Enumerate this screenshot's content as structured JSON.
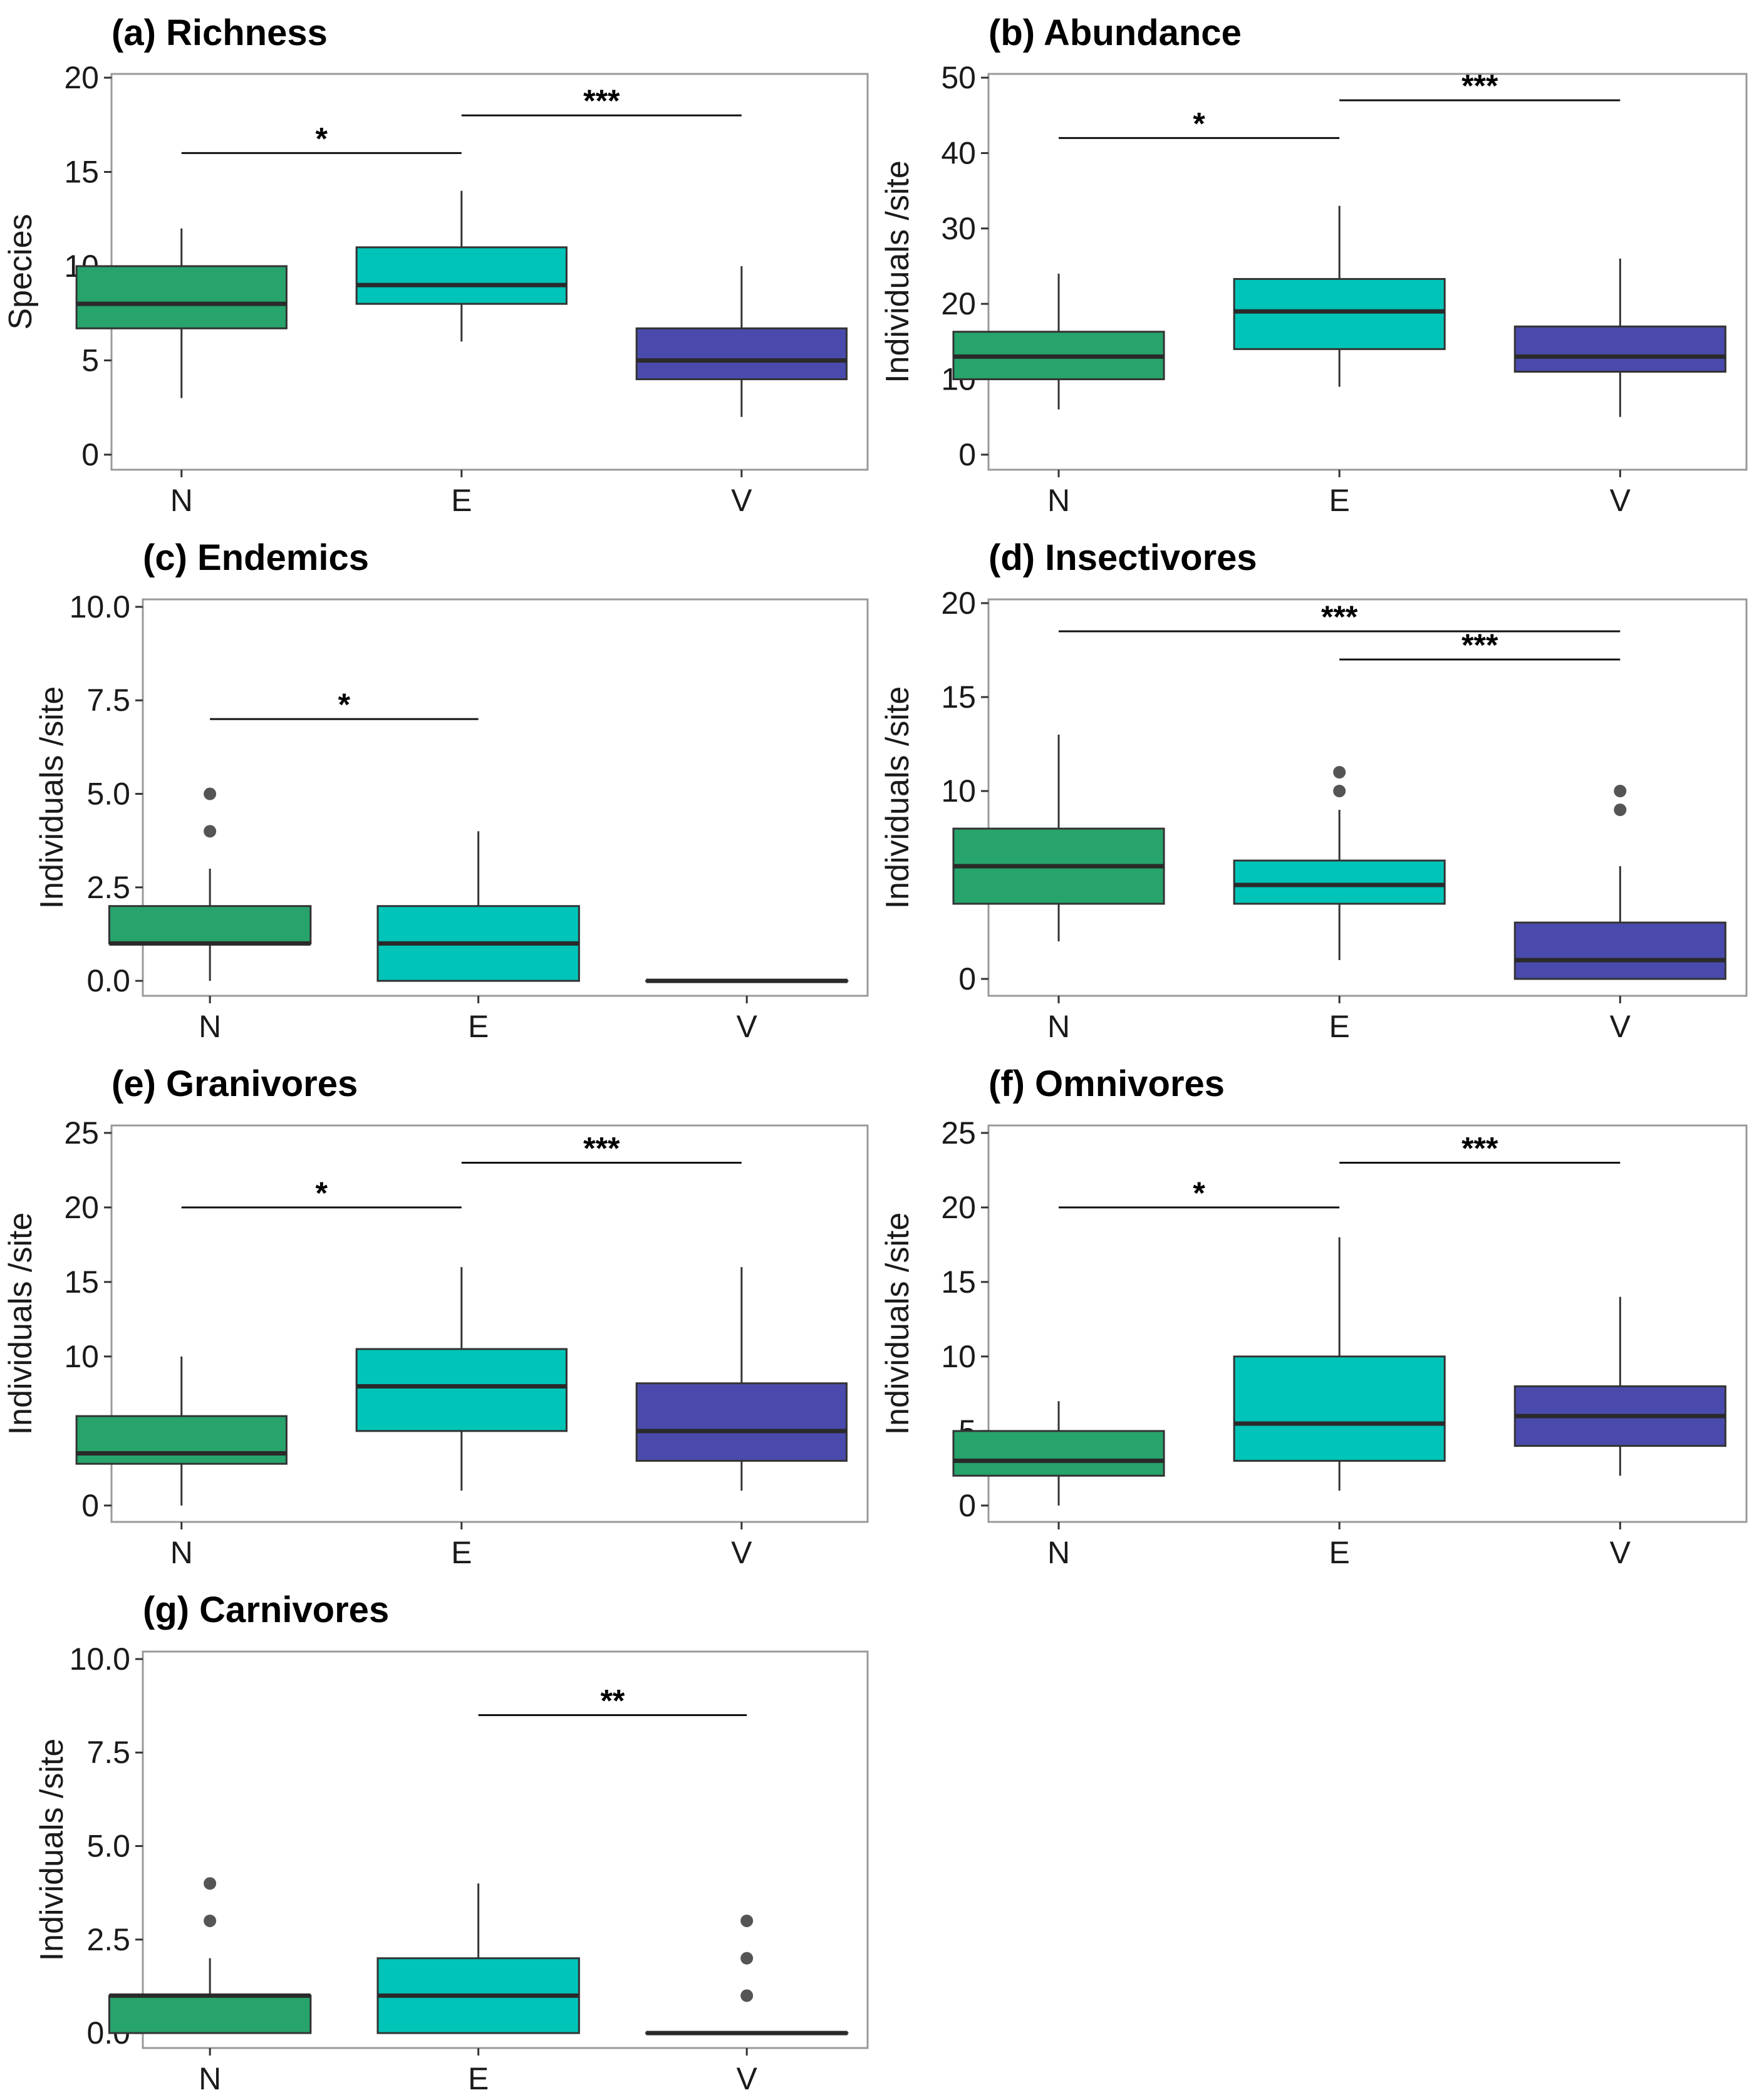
{
  "chart_data": [
    {
      "type": "box",
      "panel": "(a) Richness",
      "title": "(a) Richness",
      "ylabel": "Species",
      "ylim": [
        -0.8,
        20.2
      ],
      "ticks": [
        "0",
        "5",
        "10",
        "15",
        "20"
      ],
      "tick_values": [
        0,
        5,
        10,
        15,
        20
      ],
      "categories": [
        "N",
        "E",
        "V"
      ],
      "boxes": [
        {
          "q1": 6.7,
          "median": 8,
          "q3": 10,
          "lo": 3,
          "hi": 12,
          "outliers": []
        },
        {
          "q1": 8,
          "median": 9,
          "q3": 11,
          "lo": 6,
          "hi": 14,
          "outliers": []
        },
        {
          "q1": 4,
          "median": 5,
          "q3": 6.7,
          "lo": 2,
          "hi": 10,
          "outliers": []
        }
      ],
      "significance": [
        {
          "from": 0,
          "to": 1,
          "y": 16,
          "label": "*"
        },
        {
          "from": 1,
          "to": 2,
          "y": 18,
          "label": "***"
        }
      ]
    },
    {
      "type": "box",
      "panel": "(b) Abundance",
      "title": "(b) Abundance",
      "ylabel": "Individuals /site",
      "ylim": [
        -2,
        50.5
      ],
      "ticks": [
        "0",
        "10",
        "20",
        "30",
        "40",
        "50"
      ],
      "tick_values": [
        0,
        10,
        20,
        30,
        40,
        50
      ],
      "categories": [
        "N",
        "E",
        "V"
      ],
      "boxes": [
        {
          "q1": 10,
          "median": 13,
          "q3": 16.3,
          "lo": 6,
          "hi": 24,
          "outliers": []
        },
        {
          "q1": 14,
          "median": 19,
          "q3": 23.3,
          "lo": 9,
          "hi": 33,
          "outliers": []
        },
        {
          "q1": 11,
          "median": 13,
          "q3": 17,
          "lo": 5,
          "hi": 26,
          "outliers": []
        }
      ],
      "significance": [
        {
          "from": 0,
          "to": 1,
          "y": 42,
          "label": "*"
        },
        {
          "from": 1,
          "to": 2,
          "y": 47,
          "label": "***"
        }
      ]
    },
    {
      "type": "box",
      "panel": "(c) Endemics",
      "title": "(c) Endemics",
      "ylabel": "Individuals /site",
      "ylim": [
        -0.4,
        10.2
      ],
      "ticks": [
        "0.0",
        "2.5",
        "5.0",
        "7.5",
        "10.0"
      ],
      "tick_values": [
        0,
        2.5,
        5,
        7.5,
        10
      ],
      "categories": [
        "N",
        "E",
        "V"
      ],
      "boxes": [
        {
          "q1": 1,
          "median": 1,
          "q3": 2,
          "lo": 0,
          "hi": 3,
          "outliers": [
            4,
            5
          ]
        },
        {
          "q1": 0,
          "median": 1,
          "q3": 2,
          "lo": 0,
          "hi": 4,
          "outliers": []
        },
        {
          "q1": 0,
          "median": 0,
          "q3": 0,
          "lo": 0,
          "hi": 0,
          "outliers": []
        }
      ],
      "significance": [
        {
          "from": 0,
          "to": 1,
          "y": 7,
          "label": "*"
        }
      ]
    },
    {
      "type": "box",
      "panel": "(d) Insectivores",
      "title": "(d) Insectivores",
      "ylabel": "Individuals /site",
      "ylim": [
        -0.9,
        20.2
      ],
      "ticks": [
        "0",
        "5",
        "10",
        "15",
        "20"
      ],
      "tick_values": [
        0,
        5,
        10,
        15,
        20
      ],
      "categories": [
        "N",
        "E",
        "V"
      ],
      "boxes": [
        {
          "q1": 4,
          "median": 6,
          "q3": 8,
          "lo": 2,
          "hi": 13,
          "outliers": []
        },
        {
          "q1": 4,
          "median": 5,
          "q3": 6.3,
          "lo": 1,
          "hi": 9,
          "outliers": [
            10,
            11
          ]
        },
        {
          "q1": 0,
          "median": 1,
          "q3": 3,
          "lo": 0,
          "hi": 6,
          "outliers": [
            9,
            10
          ]
        }
      ],
      "significance": [
        {
          "from": 0,
          "to": 2,
          "y": 18.5,
          "label": "***"
        },
        {
          "from": 1,
          "to": 2,
          "y": 17,
          "label": "***"
        }
      ]
    },
    {
      "type": "box",
      "panel": "(e) Granivores",
      "title": "(e) Granivores",
      "ylabel": "Individuals /site",
      "ylim": [
        -1.1,
        25.5
      ],
      "ticks": [
        "0",
        "5",
        "10",
        "15",
        "20",
        "25"
      ],
      "tick_values": [
        0,
        5,
        10,
        15,
        20,
        25
      ],
      "categories": [
        "N",
        "E",
        "V"
      ],
      "boxes": [
        {
          "q1": 2.8,
          "median": 3.5,
          "q3": 6,
          "lo": 0,
          "hi": 10,
          "outliers": []
        },
        {
          "q1": 5,
          "median": 8,
          "q3": 10.5,
          "lo": 1,
          "hi": 16,
          "outliers": []
        },
        {
          "q1": 3,
          "median": 5,
          "q3": 8.2,
          "lo": 1,
          "hi": 16,
          "outliers": []
        }
      ],
      "significance": [
        {
          "from": 0,
          "to": 1,
          "y": 20,
          "label": "*"
        },
        {
          "from": 1,
          "to": 2,
          "y": 23,
          "label": "***"
        }
      ]
    },
    {
      "type": "box",
      "panel": "(f) Omnivores",
      "title": "(f) Omnivores",
      "ylabel": "Individuals /site",
      "ylim": [
        -1.1,
        25.5
      ],
      "ticks": [
        "0",
        "5",
        "10",
        "15",
        "20",
        "25"
      ],
      "tick_values": [
        0,
        5,
        10,
        15,
        20,
        25
      ],
      "categories": [
        "N",
        "E",
        "V"
      ],
      "boxes": [
        {
          "q1": 2,
          "median": 3,
          "q3": 5,
          "lo": 0,
          "hi": 7,
          "outliers": []
        },
        {
          "q1": 3,
          "median": 5.5,
          "q3": 10,
          "lo": 1,
          "hi": 18,
          "outliers": []
        },
        {
          "q1": 4,
          "median": 6,
          "q3": 8,
          "lo": 2,
          "hi": 14,
          "outliers": []
        }
      ],
      "significance": [
        {
          "from": 0,
          "to": 1,
          "y": 20,
          "label": "*"
        },
        {
          "from": 1,
          "to": 2,
          "y": 23,
          "label": "***"
        }
      ]
    },
    {
      "type": "box",
      "panel": "(g) Carnivores",
      "title": "(g) Carnivores",
      "ylabel": "Individuals /site",
      "ylim": [
        -0.4,
        10.2
      ],
      "ticks": [
        "0.0",
        "2.5",
        "5.0",
        "7.5",
        "10.0"
      ],
      "tick_values": [
        0,
        2.5,
        5,
        7.5,
        10
      ],
      "categories": [
        "N",
        "E",
        "V"
      ],
      "boxes": [
        {
          "q1": 0,
          "median": 1,
          "q3": 1,
          "lo": 0,
          "hi": 2,
          "outliers": [
            3,
            4
          ]
        },
        {
          "q1": 0,
          "median": 1,
          "q3": 2,
          "lo": 0,
          "hi": 4,
          "outliers": []
        },
        {
          "q1": 0,
          "median": 0,
          "q3": 0,
          "lo": 0,
          "hi": 0,
          "outliers": [
            1,
            2,
            3
          ]
        }
      ],
      "significance": [
        {
          "from": 1,
          "to": 2,
          "y": 8.5,
          "label": "**"
        }
      ]
    }
  ],
  "colors": {
    "N": "#27a36c",
    "E": "#00c4b8",
    "V": "#4a4aad",
    "outline": "#333333",
    "median": "#2a2a2a",
    "outlier": "#555555",
    "frame": "#9a9a9a"
  }
}
